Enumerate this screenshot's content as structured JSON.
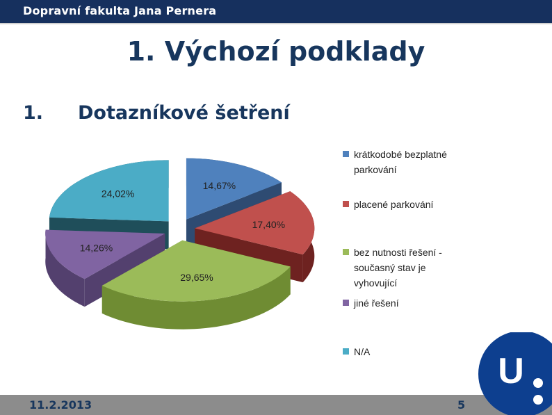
{
  "header": {
    "faculty": "Dopravní fakulta Jana Pernera"
  },
  "slide": {
    "title": "1. Výchozí podklady",
    "subtitle_number": "1.",
    "subtitle_text": "Dotazníkové šetření"
  },
  "chart_data": {
    "type": "pie",
    "slices": [
      {
        "label": "krátkodobé bezplatné parkování",
        "value": 14.67,
        "display": "14,67%",
        "color": "#4f81bd",
        "side": "#2e4b72",
        "top": "#4f81bd"
      },
      {
        "label": "placené parkování",
        "value": 17.4,
        "display": "17,40%",
        "color": "#c0504d",
        "side": "#6e2220",
        "top": "#c0504d"
      },
      {
        "label": "bez nutnosti řešení - současný stav je vyhovující",
        "value": 29.65,
        "display": "29,65%",
        "color": "#9bbb59",
        "side": "#6f8c33",
        "top": "#9bbb59"
      },
      {
        "label": "jiné řešení",
        "value": 14.26,
        "display": "14,26%",
        "color": "#8064a2",
        "side": "#53406e",
        "top": "#8064a2"
      },
      {
        "label": "N/A",
        "value": 24.02,
        "display": "24,02%",
        "color": "#4bacc6",
        "side": "#1f4e5a",
        "top": "#4bacc6"
      }
    ]
  },
  "legend": [
    {
      "lines": [
        "krátkodobé bezplatné",
        "parkování"
      ],
      "color": "#4f81bd"
    },
    {
      "lines": [
        "placené parkování"
      ],
      "color": "#c0504d"
    },
    {
      "lines": [
        "bez nutnosti řešení -",
        "současný stav je",
        "vyhovující"
      ],
      "color": "#9bbb59"
    },
    {
      "lines": [
        "jiné řešení"
      ],
      "color": "#8064a2"
    },
    {
      "lines": [
        "N/A"
      ],
      "color": "#4bacc6"
    }
  ],
  "footer": {
    "date": "11.2.2013",
    "page": "5"
  },
  "logo": {
    "letter": "U",
    "color": "#0d3f8f"
  }
}
